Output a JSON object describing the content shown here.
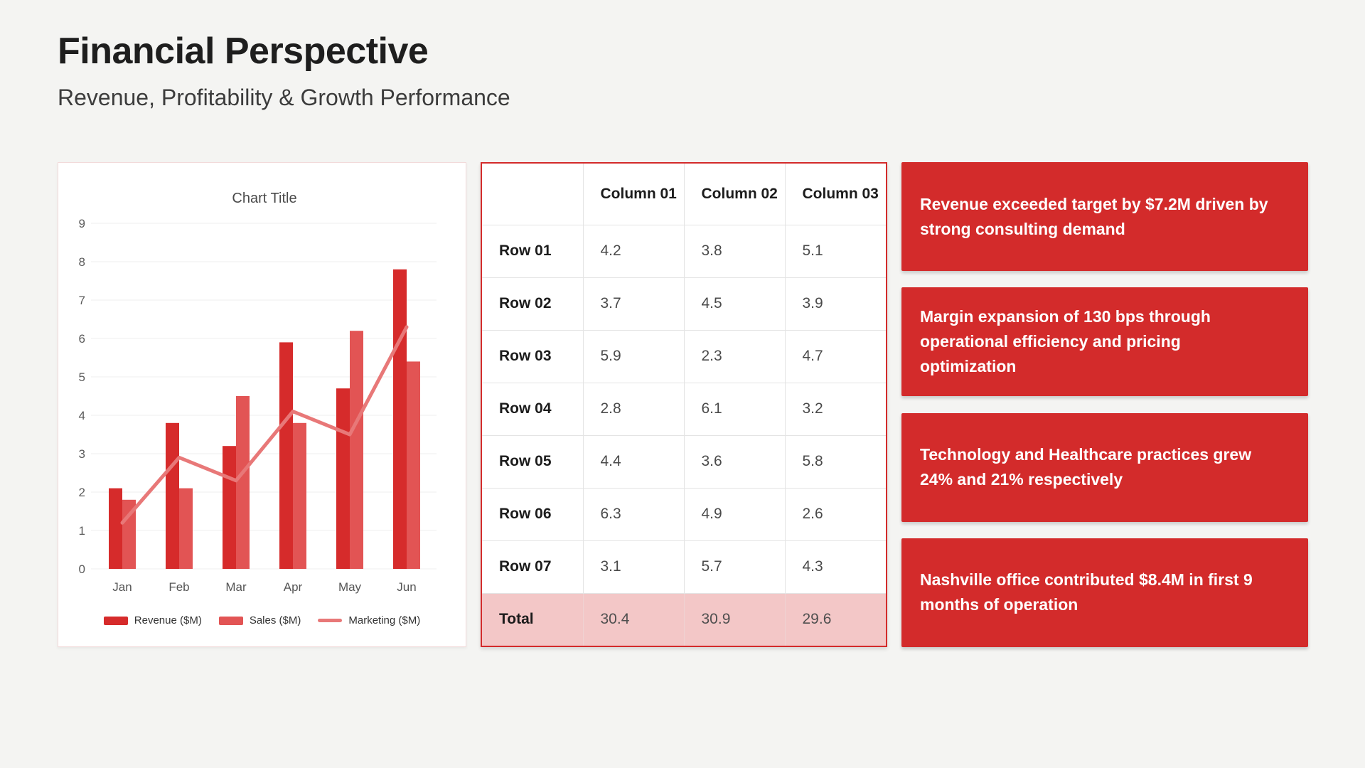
{
  "header": {
    "title": "Financial Perspective",
    "subtitle": "Revenue, Profitability & Growth Performance"
  },
  "colors": {
    "page_background": "#f4f4f2",
    "accent_red": "#d32b2b",
    "revenue_bar": "#d62b2b",
    "sales_bar": "#e25454",
    "marketing_line": "#e87878",
    "total_row_background": "#f3c7c7",
    "panel_border_pink": "#f2dada",
    "gridline": "#efefef"
  },
  "chart_data": [
    {
      "type": "bar",
      "title": "Chart Title",
      "categories": [
        "Jan",
        "Feb",
        "Mar",
        "Apr",
        "May",
        "Jun"
      ],
      "series": [
        {
          "name": "Revenue ($M)",
          "kind": "bar",
          "color": "#d62b2b",
          "values": [
            2.1,
            3.8,
            3.2,
            5.9,
            4.7,
            7.8
          ]
        },
        {
          "name": "Sales ($M)",
          "kind": "bar",
          "color": "#e25454",
          "values": [
            1.8,
            2.1,
            4.5,
            3.8,
            6.2,
            5.4
          ]
        },
        {
          "name": "Marketing ($M)",
          "kind": "line",
          "color": "#e87878",
          "values": [
            1.2,
            2.9,
            2.3,
            4.1,
            3.5,
            6.3
          ]
        }
      ],
      "xlabel": "",
      "ylabel": "",
      "ylim": [
        0,
        9
      ],
      "ytick_step": 1,
      "grid": true,
      "legend_position": "bottom"
    },
    {
      "type": "table",
      "columns": [
        "",
        "Column 01",
        "Column 02",
        "Column 03"
      ],
      "rows": [
        {
          "label": "Row 01",
          "values": [
            "4.2",
            "3.8",
            "5.1"
          ],
          "is_total": false
        },
        {
          "label": "Row 02",
          "values": [
            "3.7",
            "4.5",
            "3.9"
          ],
          "is_total": false
        },
        {
          "label": "Row 03",
          "values": [
            "5.9",
            "2.3",
            "4.7"
          ],
          "is_total": false
        },
        {
          "label": "Row 04",
          "values": [
            "2.8",
            "6.1",
            "3.2"
          ],
          "is_total": false
        },
        {
          "label": "Row 05",
          "values": [
            "4.4",
            "3.6",
            "5.8"
          ],
          "is_total": false
        },
        {
          "label": "Row 06",
          "values": [
            "6.3",
            "4.9",
            "2.6"
          ],
          "is_total": false
        },
        {
          "label": "Row 07",
          "values": [
            "3.1",
            "5.7",
            "4.3"
          ],
          "is_total": false
        },
        {
          "label": "Total",
          "values": [
            "30.4",
            "30.9",
            "29.6"
          ],
          "is_total": true
        }
      ]
    }
  ],
  "callouts": [
    {
      "lines": [
        "Revenue exceeded target by $7.2M driven by",
        "strong consulting demand"
      ]
    },
    {
      "lines": [
        "Margin expansion of 130 bps through",
        "operational efficiency and pricing",
        "optimization"
      ]
    },
    {
      "lines": [
        "Technology and Healthcare practices grew",
        "24% and 21% respectively"
      ]
    },
    {
      "lines": [
        "Nashville office contributed $8.4M in first 9",
        "months of operation"
      ]
    }
  ]
}
